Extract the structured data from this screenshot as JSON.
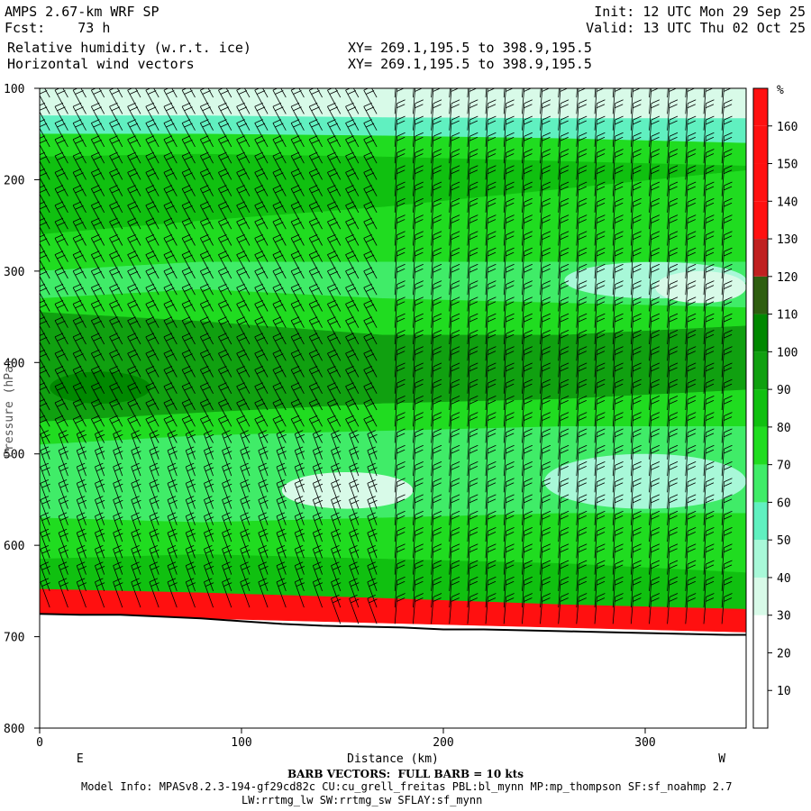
{
  "header": {
    "model": "AMPS 2.67-km WRF SP",
    "fcst_label": "Fcst:",
    "fcst_value": "73 h",
    "init": "Init: 12 UTC Mon 29 Sep 25",
    "valid": "Valid: 13 UTC Thu 02 Oct 25",
    "field1": "Relative humidity (w.r.t. ice)",
    "field2": "Horizontal wind vectors",
    "xy1": "XY= 269.1,195.5 to 398.9,195.5",
    "xy2": "XY= 269.1,195.5 to 398.9,195.5"
  },
  "footer": {
    "barb_note": "BARB VECTORS:  FULL BARB = 10 kts",
    "model_info": "Model Info: MPASv8.2.3-194-gf29cd82c CU:cu_grell_freitas PBL:bl_mynn MP:mp_thompson SF:sf_noahmp 2.7",
    "model_info2": "LW:rrtmg_lw SW:rrtmg_sw SFLAY:sf_mynn"
  },
  "colors": {
    "bins": [
      "#ffffff",
      "#ffffff",
      "#ffffff",
      "#d8fae8",
      "#a8f8d8",
      "#60f0c0",
      "#40ec68",
      "#20dc20",
      "#10c010",
      "#10a010",
      "#008800",
      "#2e5e10",
      "#c02020",
      "#ff1010",
      "#ff1010",
      "#ff1010",
      "#ff1010"
    ]
  },
  "chart_data": {
    "type": "heatmap",
    "title": "Relative humidity (w.r.t. ice)",
    "xlabel": "Distance (km)",
    "ylabel": "Pressure (hPa)",
    "xlim": [
      0,
      350
    ],
    "ylim": [
      100,
      800
    ],
    "y_reversed": true,
    "x_ticks": [
      0,
      100,
      200,
      300
    ],
    "y_ticks": [
      100,
      200,
      300,
      400,
      500,
      600,
      700,
      800
    ],
    "x_end_labels": {
      "left": "E",
      "right": "W"
    },
    "colorbar": {
      "unit": "%",
      "levels": [
        10,
        20,
        30,
        40,
        50,
        60,
        70,
        80,
        90,
        100,
        110,
        120,
        130,
        140,
        150,
        160
      ],
      "range": [
        0,
        170
      ]
    },
    "bands": [
      {
        "rh": 35,
        "top": [
          100,
          100,
          100,
          100,
          100
        ],
        "bottom": [
          130,
          130,
          132,
          133,
          133
        ]
      },
      {
        "rh": 55,
        "top": [
          130,
          130,
          132,
          133,
          133
        ],
        "bottom": [
          150,
          150,
          152,
          155,
          160
        ]
      },
      {
        "rh": 75,
        "top": [
          150,
          150,
          152,
          155,
          160
        ],
        "bottom": [
          175,
          172,
          175,
          180,
          185
        ]
      },
      {
        "rh": 85,
        "top": [
          175,
          172,
          175,
          180,
          185
        ],
        "bottom": [
          260,
          245,
          230,
          210,
          190
        ]
      },
      {
        "rh": 75,
        "top": [
          260,
          245,
          230,
          210,
          190
        ],
        "bottom": [
          300,
          290,
          290,
          290,
          290
        ]
      },
      {
        "rh": 65,
        "top": [
          300,
          290,
          290,
          290,
          290
        ],
        "bottom": [
          330,
          320,
          330,
          335,
          340
        ]
      },
      {
        "rh": 75,
        "top": [
          330,
          320,
          330,
          335,
          340
        ],
        "bottom": [
          345,
          355,
          370,
          370,
          360
        ]
      },
      {
        "rh": 92,
        "top": [
          345,
          355,
          370,
          370,
          360
        ],
        "bottom": [
          465,
          455,
          445,
          440,
          430
        ]
      },
      {
        "rh": 75,
        "top": [
          465,
          455,
          445,
          440,
          430
        ],
        "bottom": [
          490,
          480,
          475,
          470,
          470
        ]
      },
      {
        "rh": 65,
        "top": [
          490,
          480,
          475,
          470,
          470
        ],
        "bottom": [
          570,
          575,
          570,
          565,
          565
        ]
      },
      {
        "rh": 75,
        "top": [
          570,
          575,
          570,
          565,
          565
        ],
        "bottom": [
          615,
          610,
          615,
          620,
          630
        ]
      },
      {
        "rh": 85,
        "top": [
          615,
          610,
          615,
          620,
          630
        ],
        "bottom": [
          648,
          652,
          658,
          665,
          670
        ]
      },
      {
        "rh": 140,
        "top": [
          648,
          652,
          658,
          665,
          670
        ],
        "bottom": [
          675,
          680,
          685,
          690,
          695
        ]
      }
    ],
    "band_x": [
      0,
      80,
      170,
      260,
      350
    ],
    "patches": [
      {
        "rh": 105,
        "x": [
          5,
          55
        ],
        "p": [
          410,
          445
        ]
      },
      {
        "rh": 45,
        "x": [
          260,
          350
        ],
        "p": [
          290,
          330
        ]
      },
      {
        "rh": 35,
        "x": [
          305,
          350
        ],
        "p": [
          300,
          335
        ]
      },
      {
        "rh": 45,
        "x": [
          250,
          350
        ],
        "p": [
          500,
          560
        ]
      },
      {
        "rh": 35,
        "x": [
          120,
          185
        ],
        "p": [
          520,
          560
        ]
      }
    ],
    "terrain": {
      "x": [
        0,
        20,
        40,
        60,
        80,
        100,
        120,
        140,
        160,
        180,
        200,
        220,
        240,
        260,
        280,
        300,
        320,
        340,
        350
      ],
      "p": [
        675,
        676,
        676,
        678,
        680,
        683,
        686,
        688,
        689,
        690,
        692,
        692,
        693,
        694,
        695,
        696,
        697,
        698,
        698
      ]
    }
  }
}
